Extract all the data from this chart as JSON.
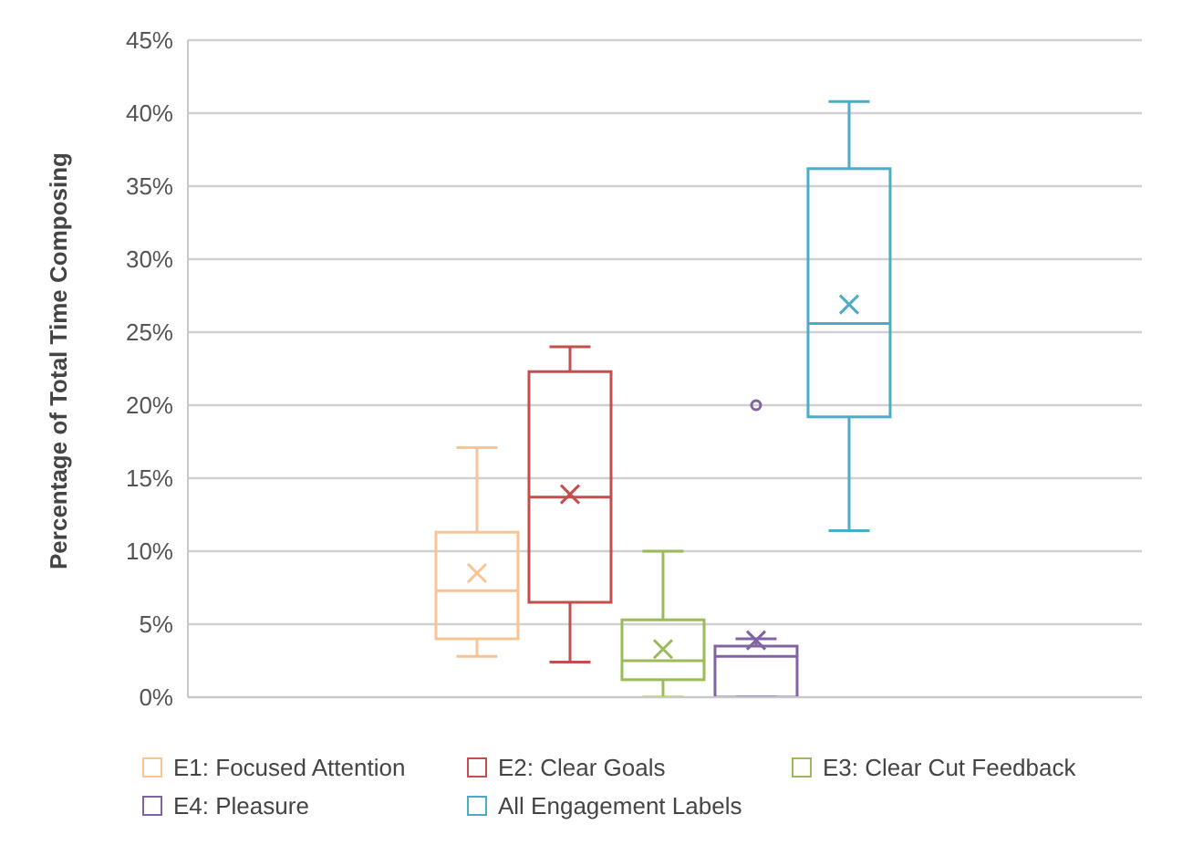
{
  "chart_data": {
    "type": "box",
    "ylabel": "Percentage of Total Time Composing",
    "categories": [
      null
    ],
    "series": [
      {
        "name": "E1: Focused Attention",
        "color": "#f9c394",
        "boxes": [
          {
            "low": 2.8,
            "q1": 4.0,
            "median": 7.3,
            "q3": 11.3,
            "high": 17.1,
            "mean": 8.5
          }
        ]
      },
      {
        "name": "E2: Clear Goals",
        "color": "#c0504d",
        "boxes": [
          {
            "low": 2.4,
            "q1": 6.5,
            "median": 13.7,
            "q3": 22.3,
            "high": 24.0,
            "mean": 13.9
          }
        ]
      },
      {
        "name": "E3: Clear Cut Feedback",
        "color": "#9bbb59",
        "boxes": [
          {
            "low": 0,
            "q1": 1.2,
            "median": 2.5,
            "q3": 5.3,
            "high": 10.0,
            "mean": 3.3
          }
        ]
      },
      {
        "name": "E4: Pleasure",
        "color": "#8064a2",
        "boxes": [
          {
            "low": 0,
            "q1": 0,
            "median": 2.8,
            "q3": 3.5,
            "high": 4.0,
            "mean": 3.9,
            "outliers": [
              20.0
            ]
          }
        ]
      },
      {
        "name": "All Engagement Labels",
        "color": "#4bacc6",
        "boxes": [
          {
            "low": 11.4,
            "q1": 19.2,
            "median": 25.6,
            "q3": 36.2,
            "high": 40.8,
            "mean": 26.9
          }
        ]
      }
    ],
    "ylim": [
      0,
      45
    ],
    "yticks": [
      {
        "value": 0,
        "label": "0%"
      },
      {
        "value": 5,
        "label": "5%"
      },
      {
        "value": 10,
        "label": "10%"
      },
      {
        "value": 15,
        "label": "15%"
      },
      {
        "value": 20,
        "label": "20%"
      },
      {
        "value": 25,
        "label": "25%"
      },
      {
        "value": 30,
        "label": "30%"
      },
      {
        "value": 35,
        "label": "35%"
      },
      {
        "value": 40,
        "label": "40%"
      },
      {
        "value": 45,
        "label": "45%"
      }
    ],
    "grid": "y",
    "legend": "bottom"
  }
}
